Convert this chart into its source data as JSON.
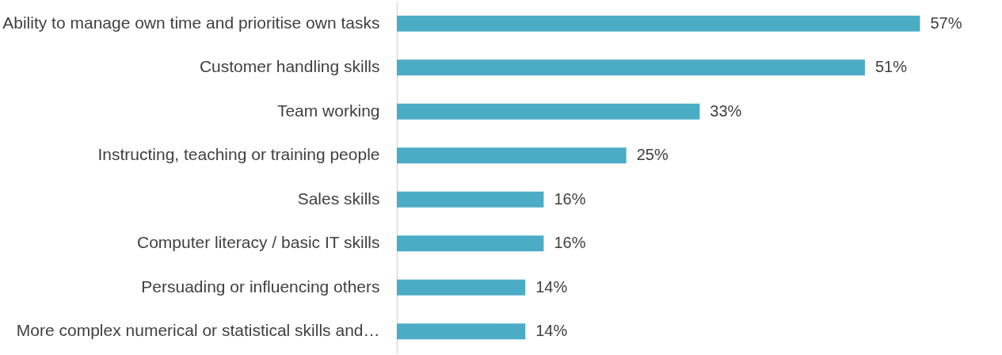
{
  "chart_data": {
    "type": "bar",
    "orientation": "horizontal",
    "categories": [
      "Ability to manage own time and prioritise own tasks",
      "Customer handling skills",
      "Team working",
      "Instructing, teaching or training people",
      "Sales skills",
      "Computer literacy / basic IT skills",
      "Persuading or influencing others",
      "More complex numerical or statistical skills and…"
    ],
    "values": [
      57,
      51,
      33,
      25,
      16,
      16,
      14,
      14
    ],
    "value_labels": [
      "57%",
      "51%",
      "33%",
      "25%",
      "16%",
      "16%",
      "14%",
      "14%"
    ],
    "color": "#4bacc6"
  }
}
